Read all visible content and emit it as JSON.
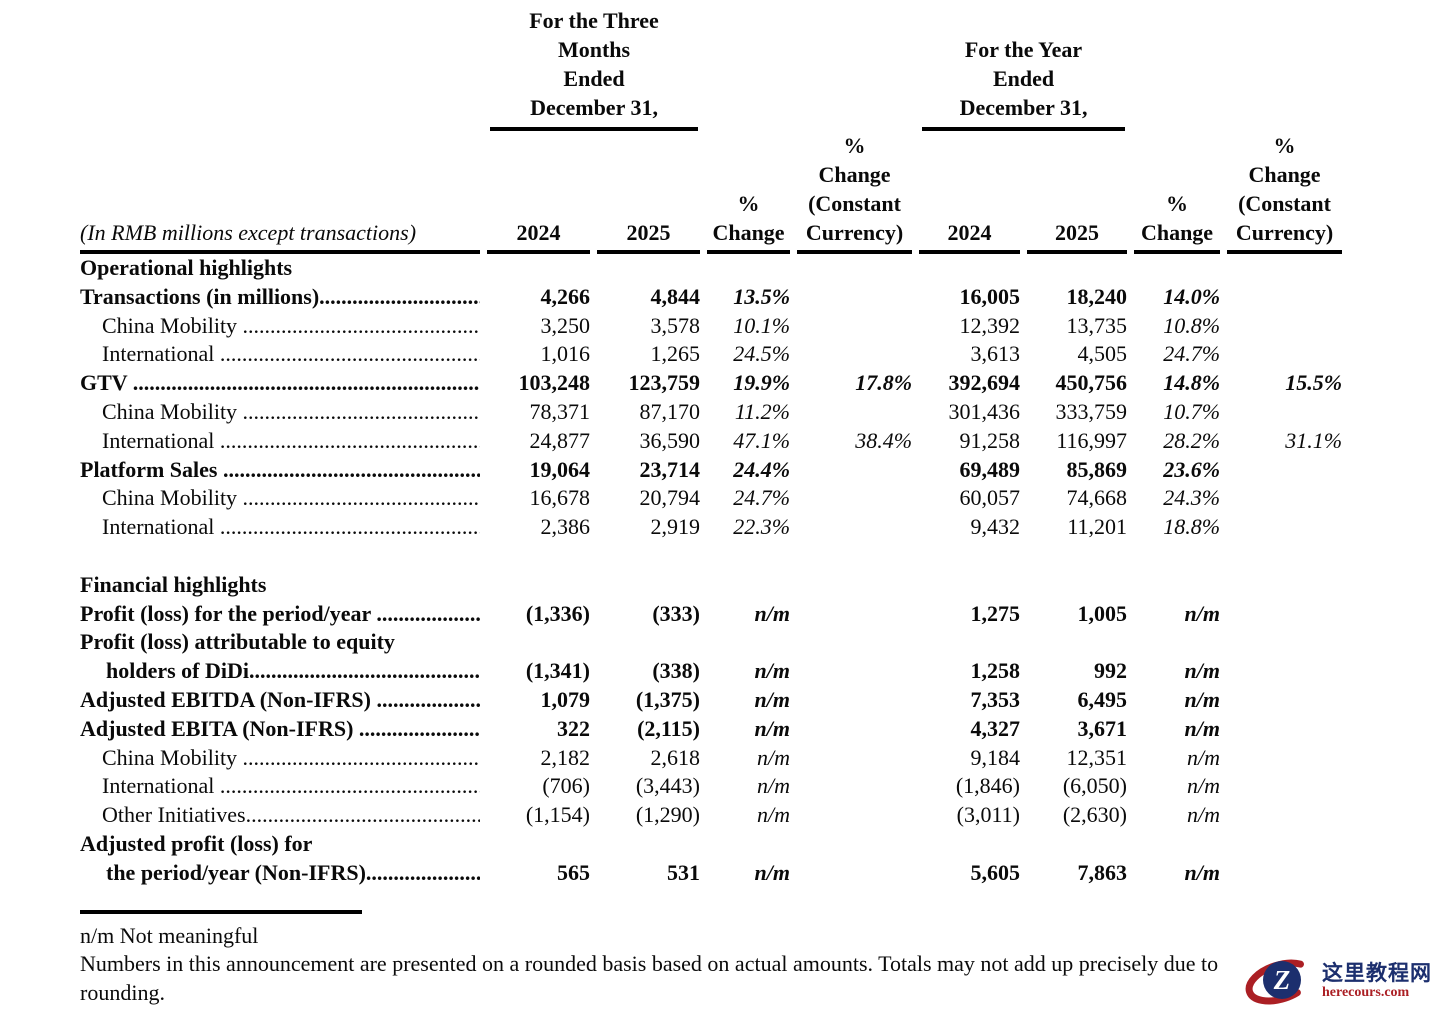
{
  "table": {
    "unit_note": "(In RMB millions except transactions)",
    "group_headers": {
      "three_months": "For the Three\nMonths\nEnded\nDecember 31,",
      "year": "For the Year\nEnded\nDecember 31,"
    },
    "col_headers": {
      "q2024": "2024",
      "q2025": "2025",
      "q_pct": "%\nChange",
      "q_pct_cc": "%\nChange\n(Constant\nCurrency)",
      "fy2024": "2024",
      "fy2025": "2025",
      "fy_pct": "%\nChange",
      "fy_pct_cc": "%\nChange\n(Constant\nCurrency)"
    },
    "rows": [
      {
        "type": "section",
        "label": "Operational highlights",
        "m2024": "",
        "m2025": "",
        "mchg": "",
        "mcc": "",
        "y2024": "",
        "y2025": "",
        "ychg": "",
        "ycc": ""
      },
      {
        "type": "data",
        "bold": true,
        "indent": 0,
        "label": "Transactions (in millions).........................................",
        "m2024": "4,266",
        "m2025": "4,844",
        "mchg": "13.5%",
        "mcc": "",
        "y2024": "16,005",
        "y2025": "18,240",
        "ychg": "14.0%",
        "ycc": ""
      },
      {
        "type": "data",
        "bold": false,
        "indent": 1,
        "label": "China Mobility .........................................................",
        "m2024": "3,250",
        "m2025": "3,578",
        "mchg": "10.1%",
        "mcc": "",
        "y2024": "12,392",
        "y2025": "13,735",
        "ychg": "10.8%",
        "ycc": ""
      },
      {
        "type": "data",
        "bold": false,
        "indent": 1,
        "label": "International ............................................................",
        "m2024": "1,016",
        "m2025": "1,265",
        "mchg": "24.5%",
        "mcc": "",
        "y2024": "3,613",
        "y2025": "4,505",
        "ychg": "24.7%",
        "ycc": ""
      },
      {
        "type": "data",
        "bold": true,
        "indent": 0,
        "label": "GTV .........................................................................",
        "m2024": "103,248",
        "m2025": "123,759",
        "mchg": "19.9%",
        "mcc": "17.8%",
        "y2024": "392,694",
        "y2025": "450,756",
        "ychg": "14.8%",
        "ycc": "15.5%"
      },
      {
        "type": "data",
        "bold": false,
        "indent": 1,
        "label": "China Mobility .........................................................",
        "m2024": "78,371",
        "m2025": "87,170",
        "mchg": "11.2%",
        "mcc": "",
        "y2024": "301,436",
        "y2025": "333,759",
        "ychg": "10.7%",
        "ycc": ""
      },
      {
        "type": "data",
        "bold": false,
        "indent": 1,
        "label": "International ............................................................",
        "m2024": "24,877",
        "m2025": "36,590",
        "mchg": "47.1%",
        "mcc": "38.4%",
        "y2024": "91,258",
        "y2025": "116,997",
        "ychg": "28.2%",
        "ycc": "31.1%"
      },
      {
        "type": "data",
        "bold": true,
        "indent": 0,
        "label": "Platform Sales .........................................................",
        "m2024": "19,064",
        "m2025": "23,714",
        "mchg": "24.4%",
        "mcc": "",
        "y2024": "69,489",
        "y2025": "85,869",
        "ychg": "23.6%",
        "ycc": ""
      },
      {
        "type": "data",
        "bold": false,
        "indent": 1,
        "label": "China Mobility .........................................................",
        "m2024": "16,678",
        "m2025": "20,794",
        "mchg": "24.7%",
        "mcc": "",
        "y2024": "60,057",
        "y2025": "74,668",
        "ychg": "24.3%",
        "ycc": ""
      },
      {
        "type": "data",
        "bold": false,
        "indent": 1,
        "label": "International ............................................................",
        "m2024": "2,386",
        "m2025": "2,919",
        "mchg": "22.3%",
        "mcc": "",
        "y2024": "9,432",
        "y2025": "11,201",
        "ychg": "18.8%",
        "ycc": ""
      },
      {
        "type": "blank",
        "label": "",
        "m2024": "",
        "m2025": "",
        "mchg": "",
        "mcc": "",
        "y2024": "",
        "y2025": "",
        "ychg": "",
        "ycc": ""
      },
      {
        "type": "section",
        "label": "Financial highlights",
        "m2024": "",
        "m2025": "",
        "mchg": "",
        "mcc": "",
        "y2024": "",
        "y2025": "",
        "ychg": "",
        "ycc": ""
      },
      {
        "type": "data",
        "bold": true,
        "indent": 0,
        "label": "Profit (loss) for the period/year ..................................",
        "m2024": "(1,336)",
        "m2025": "(333)",
        "mchg": "n/m",
        "mcc": "",
        "y2024": "1,275",
        "y2025": "1,005",
        "ychg": "n/m",
        "ycc": ""
      },
      {
        "type": "labelonly",
        "bold": true,
        "indent": 0,
        "label": "Profit (loss) attributable to equity",
        "m2024": "",
        "m2025": "",
        "mchg": "",
        "mcc": "",
        "y2024": "",
        "y2025": "",
        "ychg": "",
        "ycc": ""
      },
      {
        "type": "data",
        "bold": true,
        "indent": 2,
        "label": "holders of DiDi..........................................................",
        "m2024": "(1,341)",
        "m2025": "(338)",
        "mchg": "n/m",
        "mcc": "",
        "y2024": "1,258",
        "y2025": "992",
        "ychg": "n/m",
        "ycc": ""
      },
      {
        "type": "data",
        "bold": true,
        "indent": 0,
        "label": "Adjusted EBITDA (Non-IFRS) .......................................",
        "m2024": "1,079",
        "m2025": "(1,375)",
        "mchg": "n/m",
        "mcc": "",
        "y2024": "7,353",
        "y2025": "6,495",
        "ychg": "n/m",
        "ycc": ""
      },
      {
        "type": "data",
        "bold": true,
        "indent": 0,
        "label": "Adjusted EBITA (Non-IFRS) .........................................",
        "m2024": "322",
        "m2025": "(2,115)",
        "mchg": "n/m",
        "mcc": "",
        "y2024": "4,327",
        "y2025": "3,671",
        "ychg": "n/m",
        "ycc": ""
      },
      {
        "type": "data",
        "bold": false,
        "indent": 1,
        "label": "China Mobility .........................................................",
        "m2024": "2,182",
        "m2025": "2,618",
        "mchg": "n/m",
        "mcc": "",
        "y2024": "9,184",
        "y2025": "12,351",
        "ychg": "n/m",
        "ycc": ""
      },
      {
        "type": "data",
        "bold": false,
        "indent": 1,
        "label": "International ............................................................",
        "m2024": "(706)",
        "m2025": "(3,443)",
        "mchg": "n/m",
        "mcc": "",
        "y2024": "(1,846)",
        "y2025": "(6,050)",
        "ychg": "n/m",
        "ycc": ""
      },
      {
        "type": "data",
        "bold": false,
        "indent": 1,
        "label": "Other Initiatives.......................................................",
        "m2024": "(1,154)",
        "m2025": "(1,290)",
        "mchg": "n/m",
        "mcc": "",
        "y2024": "(3,011)",
        "y2025": "(2,630)",
        "ychg": "n/m",
        "ycc": ""
      },
      {
        "type": "labelonly",
        "bold": true,
        "indent": 0,
        "label": "Adjusted profit (loss) for",
        "m2024": "",
        "m2025": "",
        "mchg": "",
        "mcc": "",
        "y2024": "",
        "y2025": "",
        "ychg": "",
        "ycc": ""
      },
      {
        "type": "data",
        "bold": true,
        "indent": 2,
        "label": "the period/year (Non-IFRS)..........................................",
        "m2024": "565",
        "m2025": "531",
        "mchg": "n/m",
        "mcc": "",
        "y2024": "5,605",
        "y2025": "7,863",
        "ychg": "n/m",
        "ycc": ""
      }
    ],
    "footnotes": {
      "nm": "n/m Not meaningful",
      "rounding": "Numbers in this announcement are presented on a rounded basis based on actual amounts. Totals may not add up precisely due to rounding."
    }
  },
  "watermark": {
    "logo_letter": "Z",
    "site_name": "这里教程网",
    "site_url": "herecours.com",
    "navy_color": "#1c2f6e",
    "red_color": "#ab1f24"
  }
}
